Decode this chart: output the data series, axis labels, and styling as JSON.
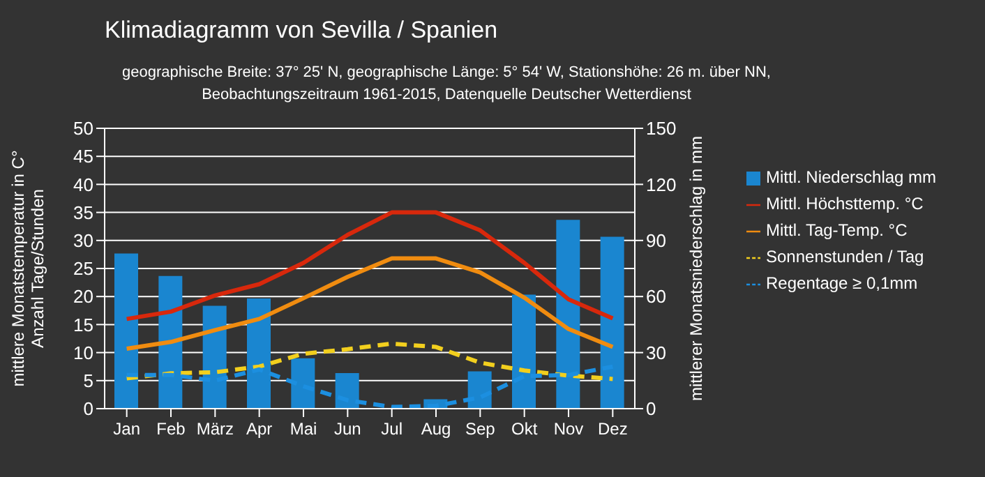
{
  "chart_data": {
    "type": "line",
    "title": "Klimadiagramm von Sevilla / Spanien",
    "subtitle": "geographische Breite: 37° 25' N, geographische Länge: 5° 54' W, Stationshöhe: 26 m. über NN,\nBeobachtungszeitraum 1961-2015, Datenquelle Deutscher Wetterdienst",
    "ylabel": "mittlere Monatstemperatur in C°\nAnzahl Tage/Stunden",
    "y2label": "mittlerer Monatsniederschlag in mm",
    "categories": [
      "Jan",
      "Feb",
      "März",
      "Apr",
      "Mai",
      "Jun",
      "Jul",
      "Aug",
      "Sep",
      "Okt",
      "Nov",
      "Dez"
    ],
    "series": [
      {
        "name": "Mittl. Niederschlag mm",
        "type": "bar",
        "axis": "y2",
        "color": "#1a86d0",
        "values": [
          83,
          71,
          55,
          59,
          27,
          19,
          null,
          5,
          20,
          61,
          101,
          92
        ]
      },
      {
        "name": "Mittl. Höchsttemp. °C",
        "color": "#d8280c",
        "line_style": "solid",
        "values": [
          16,
          17.3,
          20.2,
          22.2,
          26,
          31,
          35,
          35,
          31.8,
          26,
          19.5,
          16.1
        ]
      },
      {
        "name": "Mittl. Tag-Temp. °C",
        "color": "#f08c10",
        "line_style": "solid",
        "values": [
          10.7,
          11.9,
          14,
          16,
          19.7,
          23.5,
          26.8,
          26.8,
          24.3,
          19.8,
          14.2,
          11
        ]
      },
      {
        "name": "Sonnenstunden / Tag",
        "color": "#f2cf1e",
        "line_style": "dashed",
        "values": [
          5.4,
          6.3,
          6.5,
          7.5,
          9.8,
          10.6,
          11.6,
          11,
          8.2,
          6.8,
          5.9,
          5.3
        ]
      },
      {
        "name": "Regentage ≥ 0,1mm",
        "color": "#1c8fe0",
        "line_style": "dashed",
        "values": [
          6,
          6,
          5,
          7,
          4,
          1.5,
          0.3,
          0.5,
          2,
          5.8,
          6,
          7.5
        ]
      }
    ],
    "ylim": [
      0,
      50
    ],
    "yticks": [
      0,
      5,
      10,
      15,
      20,
      25,
      30,
      35,
      40,
      45,
      50
    ],
    "y2lim": [
      0,
      150
    ],
    "y2ticks": [
      0,
      30,
      60,
      90,
      120,
      150
    ],
    "grid": "y",
    "legend": "right",
    "marker": "none"
  }
}
